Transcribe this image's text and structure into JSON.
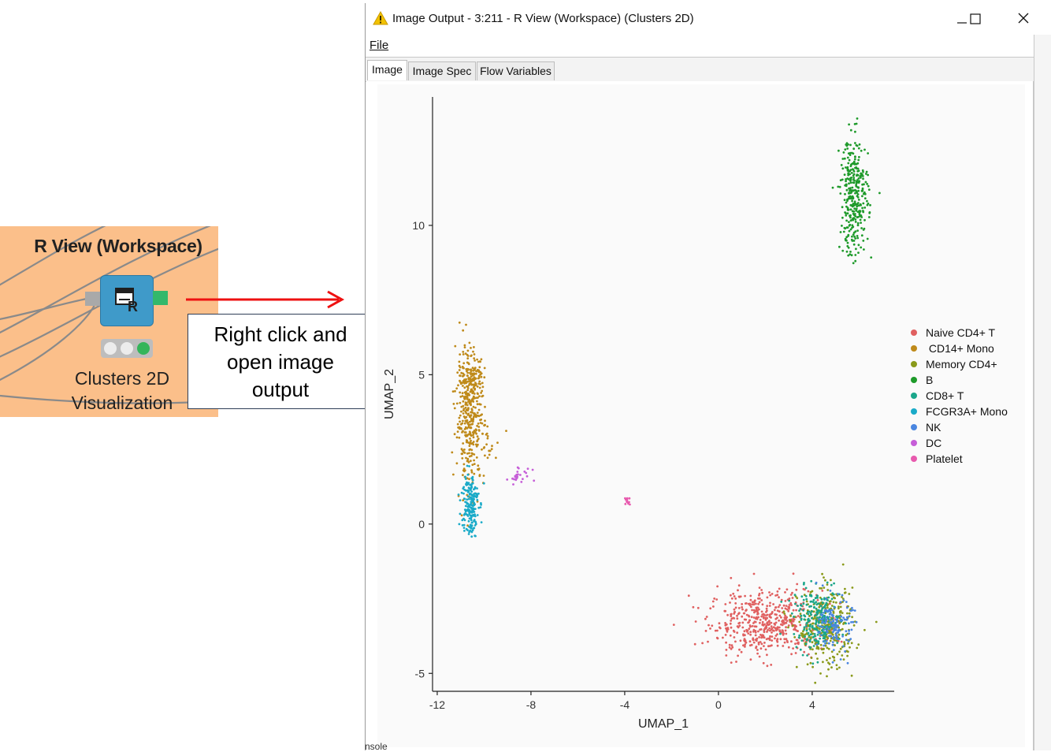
{
  "node": {
    "title": "R View (Workspace)",
    "label_line1": "Clusters 2D",
    "label_line2": "Visualization",
    "icon": "r-view-icon"
  },
  "callout": {
    "line1": "Right click and",
    "line2": "open image",
    "line3": "output"
  },
  "window": {
    "title": "Image Output - 3:211 - R View (Workspace) (Clusters 2D)",
    "title_icon": "warning-triangle-icon",
    "menu": {
      "file": "File"
    },
    "tabs": [
      {
        "label": "Image",
        "active": true
      },
      {
        "label": "Image Spec",
        "active": false
      },
      {
        "label": "Flow Variables",
        "active": false
      }
    ],
    "controls": [
      "minimize-icon",
      "maximize-icon",
      "close-icon"
    ]
  },
  "bottom_cut_text": "nsole",
  "chart_data": {
    "type": "scatter",
    "xlabel": "UMAP_1",
    "ylabel": "UMAP_2",
    "xlim": [
      -12.2,
      7.5
    ],
    "ylim": [
      -5.6,
      14.3
    ],
    "xticks": [
      -12,
      -8,
      -4,
      0,
      4
    ],
    "yticks": [
      -5,
      0,
      5,
      10
    ],
    "legend_position": "right",
    "series": [
      {
        "name": "Naive CD4+ T",
        "color": "#e06060",
        "clusters": [
          {
            "cx": 2.0,
            "cy": -3.3,
            "sx": 1.2,
            "sy": 0.55,
            "n": 520
          }
        ]
      },
      {
        "name": " CD14+ Mono",
        "color": "#bf8a1a",
        "clusters": [
          {
            "cx": -10.6,
            "cy": 3.6,
            "sx": 0.3,
            "sy": 1.1,
            "n": 380
          },
          {
            "cx": -10.5,
            "cy": 5.0,
            "sx": 0.25,
            "sy": 0.25,
            "n": 80
          },
          {
            "cx": -9.8,
            "cy": 2.6,
            "sx": 0.3,
            "sy": 0.3,
            "n": 20
          }
        ]
      },
      {
        "name": "Memory CD4+",
        "color": "#8a9a1a",
        "clusters": [
          {
            "cx": 4.6,
            "cy": -3.5,
            "sx": 0.6,
            "sy": 0.65,
            "n": 330
          }
        ]
      },
      {
        "name": "B",
        "color": "#1e9a2a",
        "clusters": [
          {
            "cx": 5.8,
            "cy": 11.0,
            "sx": 0.3,
            "sy": 1.0,
            "n": 330
          }
        ]
      },
      {
        "name": "CD8+ T",
        "color": "#1aa68a",
        "clusters": [
          {
            "cx": 4.2,
            "cy": -3.2,
            "sx": 0.5,
            "sy": 0.5,
            "n": 220
          }
        ]
      },
      {
        "name": "FCGR3A+ Mono",
        "color": "#1aaac8",
        "clusters": [
          {
            "cx": -10.6,
            "cy": 0.7,
            "sx": 0.18,
            "sy": 0.55,
            "n": 190
          }
        ]
      },
      {
        "name": "NK",
        "color": "#4a86e0",
        "clusters": [
          {
            "cx": 5.0,
            "cy": -3.4,
            "sx": 0.35,
            "sy": 0.45,
            "n": 130
          }
        ]
      },
      {
        "name": "DC",
        "color": "#c65ed8",
        "clusters": [
          {
            "cx": -8.5,
            "cy": 1.6,
            "sx": 0.3,
            "sy": 0.13,
            "n": 26
          }
        ]
      },
      {
        "name": "Platelet",
        "color": "#e85aae",
        "clusters": [
          {
            "cx": -3.9,
            "cy": 0.8,
            "sx": 0.06,
            "sy": 0.08,
            "n": 12
          }
        ]
      }
    ]
  }
}
